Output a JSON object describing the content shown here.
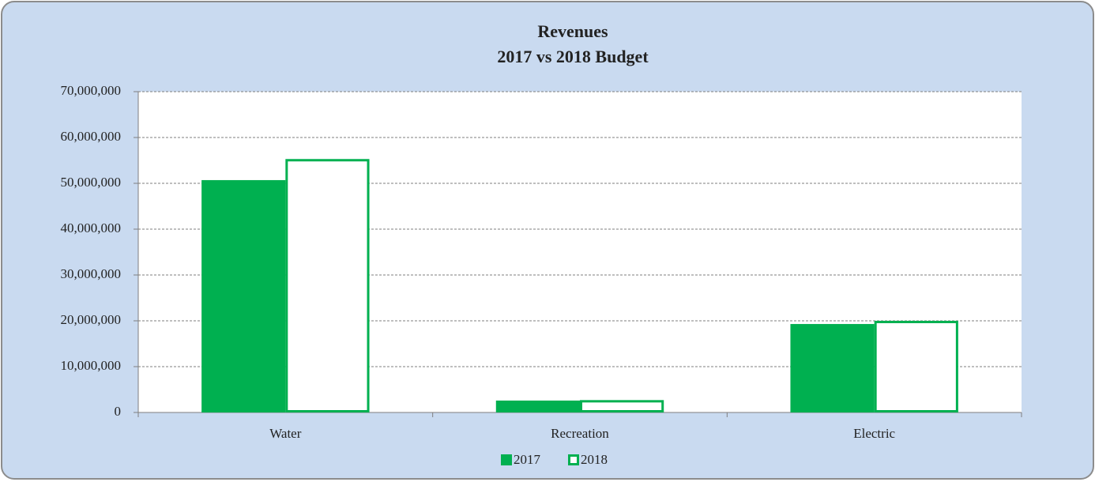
{
  "chart_data": {
    "type": "bar",
    "title": "Revenues",
    "subtitle": "2017 vs 2018 Budget",
    "categories": [
      "Water",
      "Recreation",
      "Electric"
    ],
    "series": [
      {
        "name": "2017",
        "color": "#00b050",
        "fill": "solid",
        "values": [
          50700000,
          2600000,
          19300000
        ]
      },
      {
        "name": "2018",
        "color": "#00b050",
        "fill": "outline",
        "values": [
          55300000,
          2700000,
          20000000
        ]
      }
    ],
    "ylim": [
      0,
      70000000
    ],
    "yticks": [
      0,
      {
        "value": 10000000,
        "label": "10,000,000"
      },
      {
        "value": 20000000,
        "label": "20,000,000"
      },
      {
        "value": 30000000,
        "label": "30,000,000"
      },
      {
        "value": 40000000,
        "label": "40,000,000"
      },
      {
        "value": 50000000,
        "label": "50,000,000"
      },
      {
        "value": 60000000,
        "label": "60,000,000"
      },
      {
        "value": 70000000,
        "label": "70,000,000"
      }
    ],
    "grid": true,
    "legend": "bottom"
  }
}
